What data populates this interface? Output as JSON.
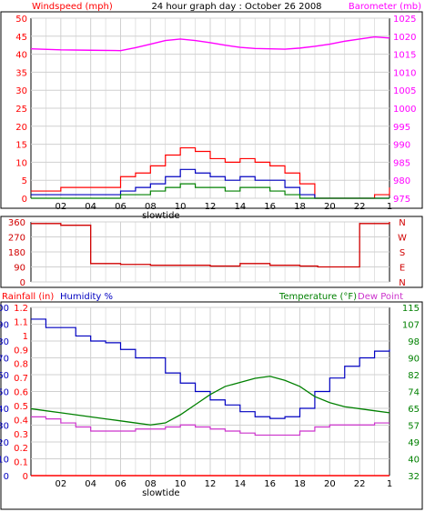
{
  "header": {
    "left": "Windspeed (mph)",
    "center": "24 hour graph day : October 26 2008",
    "right": "Barometer (mb)"
  },
  "colors": {
    "wind": "#ff0000",
    "wind_avg": "#0000c0",
    "gust_low": "#008000",
    "barometer": "#ff00ff",
    "direction": "#d00000",
    "humidity": "#0000c0",
    "temperature": "#008000",
    "dewpoint": "#cc33cc",
    "rain": "#ff0000",
    "grid": "#d0d0d0",
    "axis": "#000000"
  },
  "bottom_header": {
    "rain": "Rainfall (in)",
    "humidity": "Humidity %",
    "temp": "Temperature (°F)",
    "dew": "Dew Point"
  },
  "x_axis": {
    "ticks": [
      "02",
      "04",
      "06",
      "08",
      "10",
      "12",
      "14",
      "16",
      "18",
      "20",
      "22",
      "1"
    ],
    "annotation": "slowtide"
  },
  "chart_data": [
    {
      "type": "line",
      "title": "24 hour graph day : October 26 2008",
      "ylabel": "Windspeed (mph)",
      "ylabel_right": "Barometer (mb)",
      "ylim": [
        0,
        50
      ],
      "ylim_right": [
        975,
        1025
      ],
      "yticks": [
        "0",
        "5",
        "10",
        "15",
        "20",
        "25",
        "30",
        "35",
        "40",
        "45",
        "50"
      ],
      "yticks_right": [
        "975",
        "980",
        "985",
        "990",
        "995",
        "1000",
        "1005",
        "1010",
        "1015",
        "1020",
        "1025"
      ],
      "x": [
        0,
        2,
        4,
        6,
        7,
        8,
        9,
        10,
        11,
        12,
        13,
        14,
        15,
        16,
        17,
        18,
        19,
        20,
        21,
        22,
        23,
        24
      ],
      "series": [
        {
          "name": "Windspeed",
          "values": [
            2,
            3,
            3,
            6,
            7,
            9,
            12,
            14,
            13,
            11,
            10,
            11,
            10,
            9,
            7,
            4,
            0,
            0,
            0,
            0,
            1,
            3
          ]
        },
        {
          "name": "Wind average",
          "values": [
            1,
            1,
            1,
            2,
            3,
            4,
            6,
            8,
            7,
            6,
            5,
            6,
            5,
            5,
            3,
            1,
            0,
            0,
            0,
            0,
            0,
            0
          ]
        },
        {
          "name": "Wind low",
          "values": [
            0,
            0,
            0,
            1,
            1,
            2,
            3,
            4,
            3,
            3,
            2,
            3,
            3,
            2,
            1,
            0,
            0,
            0,
            0,
            0,
            0,
            0
          ]
        },
        {
          "name": "Barometer",
          "values": [
            1016.5,
            1016.2,
            1016.1,
            1016.0,
            1016.8,
            1017.8,
            1018.8,
            1019.2,
            1018.8,
            1018.2,
            1017.5,
            1016.9,
            1016.6,
            1016.5,
            1016.4,
            1016.7,
            1017.2,
            1017.8,
            1018.6,
            1019.2,
            1019.8,
            1019.5
          ]
        }
      ]
    },
    {
      "type": "line",
      "ylabel": "Wind direction",
      "ylim": [
        0,
        360
      ],
      "yticks": [
        "0",
        "90",
        "180",
        "270",
        "360"
      ],
      "yticks_right": [
        "N",
        "W",
        "S",
        "E",
        "N"
      ],
      "x": [
        0,
        2,
        4,
        6,
        8,
        10,
        12,
        14,
        16,
        18,
        19.2,
        22,
        24
      ],
      "series": [
        {
          "name": "Direction",
          "values": [
            350,
            340,
            110,
            105,
            100,
            100,
            95,
            110,
            100,
            95,
            90,
            350,
            360
          ]
        }
      ]
    },
    {
      "type": "line",
      "ylabel": "Rainfall (in)",
      "ylabel2": "Humidity %",
      "ylabel_right": "Temperature (°F)",
      "ylabel_right2": "Dew Point",
      "ylim_rain": [
        0,
        1.2
      ],
      "ylim_humidity": [
        0,
        100
      ],
      "ylim_temp": [
        32,
        115
      ],
      "yticks_rain": [
        "0",
        "0.1",
        "0.2",
        "0.3",
        "0.4",
        "0.5",
        "0.6",
        "0.7",
        "0.8",
        "0.9",
        "1",
        "1.1",
        "1.2"
      ],
      "yticks_humidity": [
        "0",
        "10",
        "20",
        "30",
        "40",
        "50",
        "60",
        "70",
        "80",
        "90",
        "100"
      ],
      "yticks_temp": [
        "32",
        "40",
        "49",
        "57",
        "65",
        "74",
        "82",
        "90",
        "98",
        "107",
        "115"
      ],
      "x": [
        0,
        1,
        2,
        3,
        4,
        5,
        6,
        7,
        8,
        9,
        10,
        11,
        12,
        13,
        14,
        15,
        16,
        17,
        18,
        19,
        20,
        21,
        22,
        23,
        24
      ],
      "series": [
        {
          "name": "Humidity",
          "values": [
            93,
            88,
            88,
            83,
            80,
            79,
            75,
            70,
            70,
            61,
            55,
            50,
            45,
            42,
            38,
            35,
            34,
            35,
            40,
            50,
            58,
            65,
            70,
            74,
            75
          ]
        },
        {
          "name": "Temperature",
          "values": [
            65,
            64,
            63,
            62,
            61,
            60,
            59,
            58,
            57,
            58,
            62,
            67,
            72,
            76,
            78,
            80,
            81,
            79,
            76,
            71,
            68,
            66,
            65,
            64,
            63
          ]
        },
        {
          "name": "Dew Point",
          "values": [
            61,
            60,
            58,
            56,
            54,
            54,
            54,
            55,
            55,
            56,
            57,
            56,
            55,
            54,
            53,
            52,
            52,
            52,
            54,
            56,
            57,
            57,
            57,
            58,
            58
          ]
        },
        {
          "name": "Rainfall",
          "values": [
            0,
            0,
            0,
            0,
            0,
            0,
            0,
            0,
            0,
            0,
            0,
            0,
            0,
            0,
            0,
            0,
            0,
            0,
            0,
            0,
            0,
            0,
            0,
            0,
            0
          ]
        }
      ]
    }
  ]
}
